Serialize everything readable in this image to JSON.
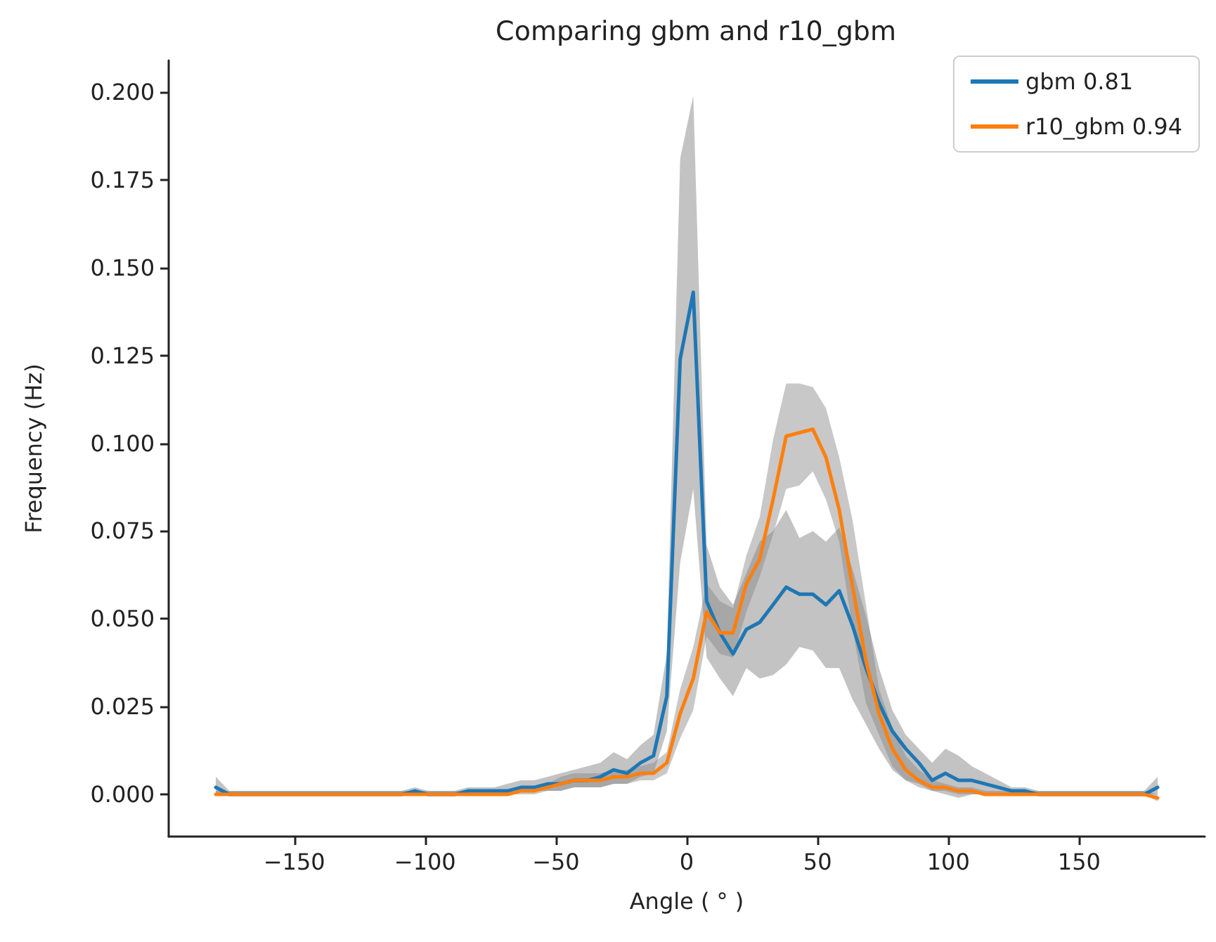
{
  "chart_data": {
    "type": "line",
    "title": "Comparing gbm and r10_gbm",
    "xlabel": "Angle ( ° )",
    "ylabel": "Frequency (Hz)",
    "x": [
      -180,
      -174.9,
      -169.9,
      -164.8,
      -159.7,
      -154.6,
      -149.6,
      -144.5,
      -139.4,
      -134.4,
      -129.3,
      -124.2,
      -119.2,
      -114.1,
      -109.0,
      -103.9,
      -98.9,
      -93.8,
      -88.7,
      -83.7,
      -78.6,
      -73.5,
      -68.5,
      -63.4,
      -58.3,
      -53.2,
      -48.2,
      -43.1,
      -38.0,
      -33.0,
      -27.9,
      -22.8,
      -17.7,
      -12.7,
      -7.6,
      -2.5,
      2.5,
      7.6,
      12.7,
      17.7,
      22.8,
      27.9,
      33.0,
      38.0,
      43.1,
      48.2,
      53.2,
      58.3,
      63.4,
      68.5,
      73.5,
      78.6,
      83.7,
      88.7,
      93.8,
      98.9,
      103.9,
      109.0,
      114.1,
      119.2,
      124.2,
      129.3,
      134.4,
      139.4,
      144.5,
      149.6,
      154.6,
      159.7,
      164.8,
      169.9,
      174.9,
      180
    ],
    "series": [
      {
        "name": "gbm 0.81",
        "color": "#1f77b4",
        "values": [
          0.002,
          0,
          0,
          0,
          0,
          0,
          0,
          0,
          0,
          0,
          0,
          0,
          0,
          0,
          0,
          0.001,
          0,
          0,
          0,
          0.001,
          0.001,
          0.001,
          0.001,
          0.002,
          0.002,
          0.003,
          0.003,
          0.004,
          0.004,
          0.005,
          0.007,
          0.006,
          0.009,
          0.011,
          0.028,
          0.124,
          0.143,
          0.055,
          0.046,
          0.04,
          0.047,
          0.049,
          0.054,
          0.059,
          0.057,
          0.057,
          0.054,
          0.058,
          0.048,
          0.036,
          0.026,
          0.018,
          0.013,
          0.009,
          0.004,
          0.006,
          0.004,
          0.004,
          0.003,
          0.002,
          0.001,
          0.001,
          0,
          0,
          0,
          0,
          0,
          0,
          0,
          0,
          0,
          0.002
        ],
        "lower": [
          0,
          0,
          0,
          0,
          0,
          0,
          0,
          0,
          0,
          0,
          0,
          0,
          0,
          0,
          0,
          0,
          0,
          0,
          0,
          0,
          0,
          0,
          0,
          0.001,
          0.001,
          0.001,
          0.001,
          0.002,
          0.002,
          0.002,
          0.003,
          0.003,
          0.005,
          0.006,
          0.018,
          0.066,
          0.087,
          0.039,
          0.033,
          0.028,
          0.036,
          0.033,
          0.034,
          0.037,
          0.042,
          0.041,
          0.036,
          0.036,
          0.027,
          0.02,
          0.013,
          0.007,
          0.004,
          0.003,
          0.001,
          0,
          -0.001,
          0,
          0,
          0,
          0,
          0,
          0,
          0,
          0,
          0,
          0,
          0,
          0,
          0,
          0,
          0
        ],
        "upper": [
          0.005,
          0.001,
          0.001,
          0.001,
          0.001,
          0.001,
          0.001,
          0.001,
          0.001,
          0.001,
          0.001,
          0.001,
          0.001,
          0.001,
          0.001,
          0.002,
          0.001,
          0.001,
          0.001,
          0.002,
          0.002,
          0.002,
          0.003,
          0.004,
          0.004,
          0.005,
          0.006,
          0.007,
          0.008,
          0.009,
          0.012,
          0.01,
          0.014,
          0.017,
          0.04,
          0.181,
          0.199,
          0.071,
          0.059,
          0.054,
          0.063,
          0.072,
          0.075,
          0.081,
          0.073,
          0.075,
          0.072,
          0.076,
          0.064,
          0.051,
          0.036,
          0.024,
          0.017,
          0.013,
          0.009,
          0.013,
          0.011,
          0.008,
          0.006,
          0.004,
          0.002,
          0.002,
          0.001,
          0.001,
          0.001,
          0.001,
          0.001,
          0.001,
          0.001,
          0.001,
          0.001,
          0.005
        ]
      },
      {
        "name": "r10_gbm 0.94",
        "color": "#ff7f0e",
        "values": [
          0,
          0,
          0,
          0,
          0,
          0,
          0,
          0,
          0,
          0,
          0,
          0,
          0,
          0,
          0,
          0,
          0,
          0,
          0,
          0,
          0,
          0,
          0,
          0.001,
          0.001,
          0.002,
          0.003,
          0.004,
          0.004,
          0.004,
          0.005,
          0.005,
          0.006,
          0.006,
          0.009,
          0.023,
          0.033,
          0.052,
          0.046,
          0.046,
          0.06,
          0.067,
          0.084,
          0.102,
          0.103,
          0.104,
          0.096,
          0.081,
          0.059,
          0.038,
          0.023,
          0.013,
          0.007,
          0.004,
          0.002,
          0.002,
          0.001,
          0.001,
          0,
          0,
          0,
          0,
          0,
          0,
          0,
          0,
          0,
          0,
          0,
          0,
          0,
          -0.001
        ],
        "lower": [
          0,
          0,
          0,
          0,
          0,
          0,
          0,
          0,
          0,
          0,
          0,
          0,
          0,
          0,
          0,
          0,
          0,
          0,
          0,
          0,
          0,
          0,
          0,
          0,
          0,
          0.001,
          0.001,
          0.002,
          0.002,
          0.002,
          0.003,
          0.003,
          0.004,
          0.004,
          0.006,
          0.016,
          0.024,
          0.045,
          0.04,
          0.039,
          0.052,
          0.062,
          0.074,
          0.087,
          0.088,
          0.092,
          0.084,
          0.072,
          0.047,
          0.026,
          0.017,
          0.008,
          0.004,
          0.002,
          0.001,
          0.001,
          0,
          0,
          0,
          0,
          0,
          0,
          0,
          0,
          0,
          0,
          0,
          0,
          0,
          0,
          0,
          -0.002
        ],
        "upper": [
          0.001,
          0.001,
          0.001,
          0.001,
          0.001,
          0.001,
          0.001,
          0.001,
          0.001,
          0.001,
          0.001,
          0.001,
          0.001,
          0.001,
          0.001,
          0.001,
          0.001,
          0.001,
          0.001,
          0.001,
          0.001,
          0.001,
          0.001,
          0.002,
          0.002,
          0.003,
          0.005,
          0.006,
          0.006,
          0.006,
          0.007,
          0.007,
          0.008,
          0.009,
          0.012,
          0.03,
          0.042,
          0.06,
          0.055,
          0.053,
          0.068,
          0.079,
          0.101,
          0.117,
          0.117,
          0.116,
          0.11,
          0.096,
          0.078,
          0.054,
          0.03,
          0.019,
          0.011,
          0.007,
          0.004,
          0.003,
          0.002,
          0.002,
          0.001,
          0.001,
          0.001,
          0.001,
          0.001,
          0.001,
          0.001,
          0.001,
          0.001,
          0.001,
          0.001,
          0.001,
          0.001,
          0
        ]
      }
    ],
    "xlim": [
      -198,
      198
    ],
    "xticks": [
      {
        "value": -150,
        "label": "−150"
      },
      {
        "value": -100,
        "label": "−100"
      },
      {
        "value": -50,
        "label": "−50"
      },
      0,
      50,
      100,
      150
    ],
    "ylim": [
      -0.012,
      0.209
    ],
    "yticks": [
      {
        "value": 0,
        "label": "0.000"
      },
      {
        "value": 0.025,
        "label": "0.025"
      },
      {
        "value": 0.05,
        "label": "0.050"
      },
      {
        "value": 0.075,
        "label": "0.075"
      },
      {
        "value": 0.1,
        "label": "0.100"
      },
      {
        "value": 0.125,
        "label": "0.125"
      },
      {
        "value": 0.15,
        "label": "0.150"
      },
      {
        "value": 0.175,
        "label": "0.175"
      },
      {
        "value": 0.2,
        "label": "0.200"
      }
    ],
    "legend": "top right",
    "grid": false,
    "marker": "none",
    "line_style": "solid"
  }
}
